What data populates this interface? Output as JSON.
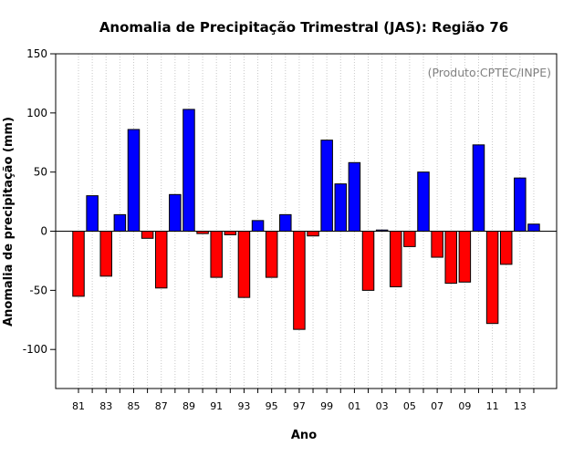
{
  "chart_data": {
    "type": "bar",
    "title": "Anomalia de Precipitação Trimestral (JAS): Região 76",
    "xlabel": "Ano",
    "ylabel": "Anomalia de precipitação (mm)",
    "annotation": "(Produto:CPTEC/INPE)",
    "ylim": [
      -133,
      150
    ],
    "yticks": [
      -100,
      -50,
      0,
      50,
      100,
      150
    ],
    "grid": "vertical dotted",
    "positive_color": "#0000ff",
    "negative_color": "#ff0000",
    "categories": [
      "81",
      "82",
      "83",
      "84",
      "85",
      "86",
      "87",
      "88",
      "89",
      "90",
      "91",
      "92",
      "93",
      "94",
      "95",
      "96",
      "97",
      "98",
      "99",
      "00",
      "01",
      "02",
      "03",
      "04",
      "05",
      "06",
      "07",
      "08",
      "09",
      "10",
      "11",
      "12",
      "13",
      "14"
    ],
    "xtick_labels": [
      "81",
      "83",
      "85",
      "87",
      "89",
      "91",
      "93",
      "95",
      "97",
      "99",
      "01",
      "03",
      "05",
      "07",
      "09",
      "11",
      "13"
    ],
    "values": [
      -55,
      30,
      -38,
      14,
      86,
      -6,
      -48,
      31,
      103,
      -2,
      -39,
      -3,
      -56,
      9,
      -39,
      14,
      -83,
      -4,
      77,
      40,
      58,
      -50,
      1,
      -47,
      -13,
      50,
      -22,
      -44,
      -43,
      73,
      -78,
      -28,
      45,
      6
    ]
  }
}
